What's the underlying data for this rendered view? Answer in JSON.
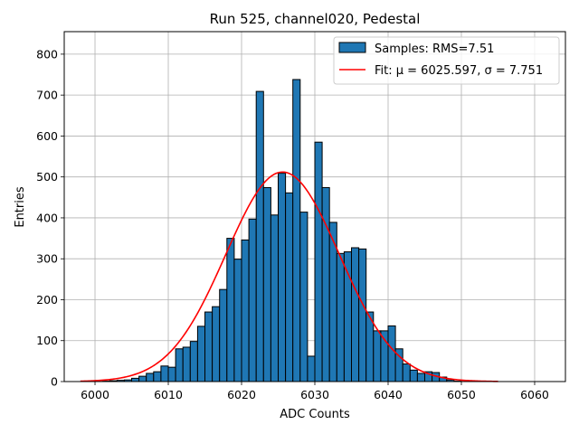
{
  "chart_data": {
    "type": "bar",
    "title": "Run 525, channel020, Pedestal",
    "xlabel": "ADC Counts",
    "ylabel": "Entries",
    "xlim": [
      5995.8,
      6064.2
    ],
    "ylim": [
      0,
      855
    ],
    "xticks": [
      6000,
      6010,
      6020,
      6030,
      6040,
      6050,
      6060
    ],
    "yticks": [
      0,
      100,
      200,
      300,
      400,
      500,
      600,
      700,
      800
    ],
    "grid": true,
    "bin_width": 1,
    "bins_left_edge": [
      6001,
      6002,
      6003,
      6004,
      6005,
      6006,
      6007,
      6008,
      6009,
      6010,
      6011,
      6012,
      6013,
      6014,
      6015,
      6016,
      6017,
      6018,
      6019,
      6020,
      6021,
      6022,
      6023,
      6024,
      6025,
      6026,
      6027,
      6028,
      6029,
      6030,
      6031,
      6032,
      6033,
      6034,
      6035,
      6036,
      6037,
      6038,
      6039,
      6040,
      6041,
      6042,
      6043,
      6044,
      6045,
      6046,
      6047,
      6048,
      6049
    ],
    "counts": [
      1,
      2,
      3,
      4,
      8,
      13,
      20,
      24,
      38,
      35,
      80,
      84,
      98,
      135,
      170,
      183,
      225,
      350,
      299,
      346,
      397,
      709,
      474,
      407,
      509,
      461,
      738,
      414,
      62,
      585,
      474,
      389,
      313,
      317,
      327,
      324,
      170,
      124,
      124,
      136,
      80,
      43,
      28,
      20,
      24,
      22,
      11,
      4,
      1
    ],
    "bar_color": "#1f77b4",
    "fit": {
      "mu": 6025.597,
      "sigma": 7.751,
      "amplitude": 512,
      "x_range": [
        5998,
        6055
      ],
      "color": "#ff0000"
    },
    "legend": {
      "position": "top-right",
      "entries": [
        {
          "label": "Samples: RMS=7.51",
          "kind": "patch"
        },
        {
          "label": "Fit: μ = 6025.597, σ = 7.751",
          "kind": "line"
        }
      ]
    }
  }
}
